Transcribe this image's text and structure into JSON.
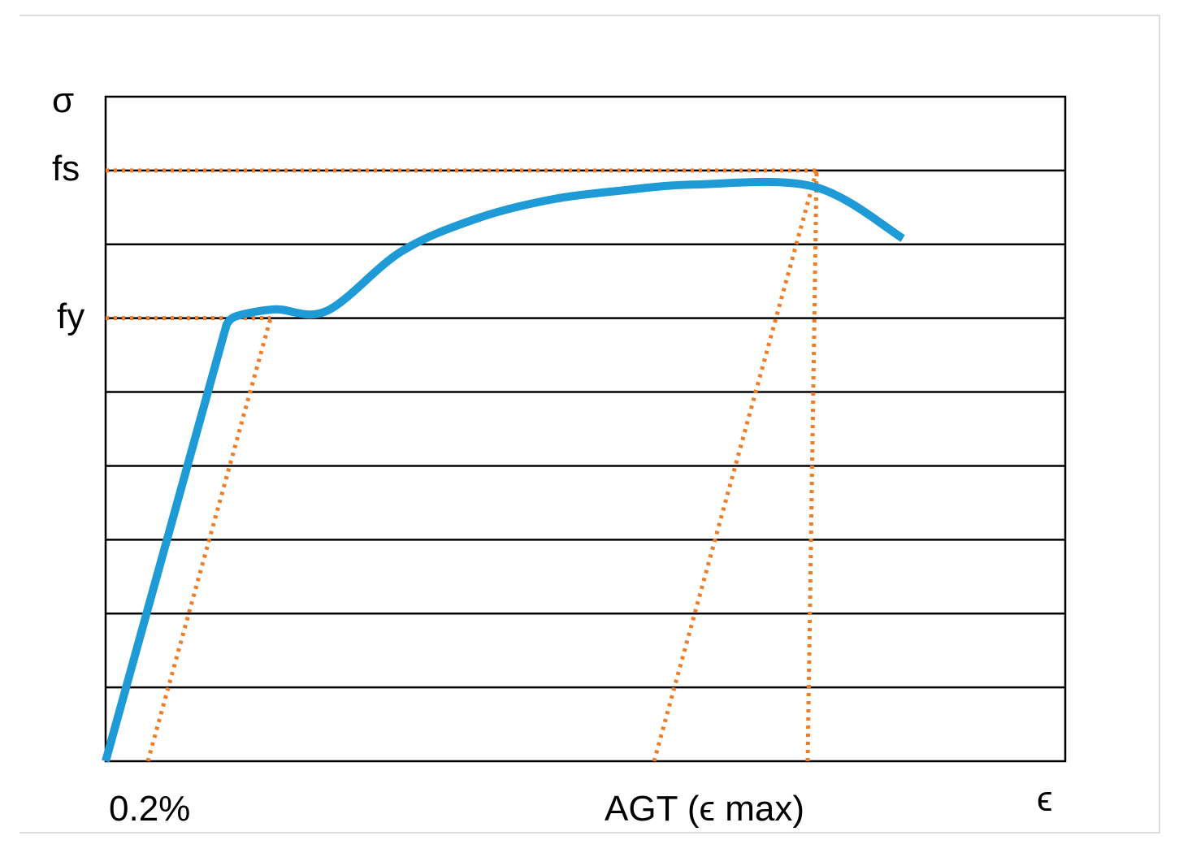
{
  "chart_data": {
    "type": "line",
    "title": "",
    "ylabel": "σ",
    "xlabel": "ϵ",
    "x_tick_labels": [
      "0.2%",
      "AGT (ϵ max)"
    ],
    "y_tick_labels": [
      "fs",
      "fy"
    ],
    "grid": true,
    "ylim": [
      0,
      8
    ],
    "xlim": [
      0,
      13
    ],
    "series": [
      {
        "color": "#1e9bd7",
        "points": [
          [
            0,
            0
          ],
          [
            1.64,
            5.92
          ],
          [
            1.78,
            6.03
          ],
          [
            2.3,
            6.12
          ],
          [
            3.0,
            6.1
          ],
          [
            4.0,
            6.9
          ],
          [
            5.0,
            7.34
          ],
          [
            6.0,
            7.6
          ],
          [
            7.0,
            7.73
          ],
          [
            8.0,
            7.81
          ],
          [
            9.6,
            7.78
          ],
          [
            10.8,
            7.08
          ]
        ]
      }
    ],
    "reference_lines": {
      "color": "#f07d26",
      "fs_level": 8,
      "fy_level": 6
    }
  },
  "colors": {
    "curve": "#1e9bd7",
    "dotted": "#f07d26",
    "grid": "#000000"
  }
}
